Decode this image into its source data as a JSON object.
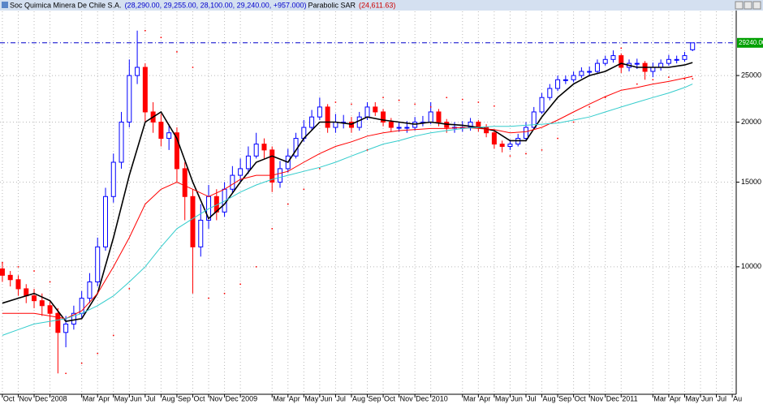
{
  "chart_data": {
    "type": "candlestick",
    "title": "Soc Quimica Minera De Chile S.A.",
    "quote": "(28,290.00, 29,255.00, 28,100.00, 29,240.00, +957.000)",
    "sar_label": "(24,611.63)",
    "log_scale": true,
    "grid": true,
    "up_color": "#0000ff",
    "down_color": "#ff0000",
    "ylim": [
      5450,
      34000
    ],
    "yticks": [
      25000,
      20000,
      15000,
      10000
    ],
    "xlim": [
      -0.15,
      46.2
    ],
    "xticks": [
      {
        "value": 0,
        "label": "Oct"
      },
      {
        "value": 1,
        "label": "Nov"
      },
      {
        "value": 2,
        "label": "Dec"
      },
      {
        "value": 3,
        "label": "2008"
      },
      {
        "value": 5,
        "label": "Mar"
      },
      {
        "value": 6,
        "label": "Apr"
      },
      {
        "value": 7,
        "label": "May"
      },
      {
        "value": 8,
        "label": "Jun"
      },
      {
        "value": 9,
        "label": "Jul"
      },
      {
        "value": 10,
        "label": "Aug"
      },
      {
        "value": 11,
        "label": "Sep"
      },
      {
        "value": 12,
        "label": "Oct"
      },
      {
        "value": 13,
        "label": "Nov"
      },
      {
        "value": 14,
        "label": "Dec"
      },
      {
        "value": 15,
        "label": "2009"
      },
      {
        "value": 17,
        "label": "Mar"
      },
      {
        "value": 18,
        "label": "Apr"
      },
      {
        "value": 19,
        "label": "May"
      },
      {
        "value": 20,
        "label": "Jun"
      },
      {
        "value": 21,
        "label": "Jul"
      },
      {
        "value": 22,
        "label": "Aug"
      },
      {
        "value": 23,
        "label": "Sep"
      },
      {
        "value": 24,
        "label": "Oct"
      },
      {
        "value": 25,
        "label": "Nov"
      },
      {
        "value": 26,
        "label": "Dec"
      },
      {
        "value": 27,
        "label": "2010"
      },
      {
        "value": 29,
        "label": "Mar"
      },
      {
        "value": 30,
        "label": "Apr"
      },
      {
        "value": 31,
        "label": "May"
      },
      {
        "value": 32,
        "label": "Jun"
      },
      {
        "value": 33,
        "label": "Jul"
      },
      {
        "value": 34,
        "label": "Aug"
      },
      {
        "value": 35,
        "label": "Sep"
      },
      {
        "value": 36,
        "label": "Oct"
      },
      {
        "value": 37,
        "label": "Nov"
      },
      {
        "value": 38,
        "label": "Dec"
      },
      {
        "value": 39,
        "label": "2011"
      },
      {
        "value": 41,
        "label": "Mar"
      },
      {
        "value": 42,
        "label": "Apr"
      },
      {
        "value": 43,
        "label": "May"
      },
      {
        "value": 44,
        "label": "Jun"
      },
      {
        "value": 45,
        "label": "Jul"
      },
      {
        "value": 46,
        "label": "Au"
      }
    ],
    "last_price": {
      "value": 29240,
      "label": "29240.00",
      "color": "#00a000"
    },
    "x": [
      0,
      0.5,
      1,
      1.5,
      2,
      2.5,
      3,
      3.5,
      4,
      4.5,
      5,
      5.5,
      6,
      6.5,
      7,
      7.5,
      8,
      8.5,
      9,
      9.5,
      10,
      10.5,
      11,
      11.5,
      12,
      12.5,
      13,
      13.5,
      14,
      14.5,
      15,
      15.5,
      16,
      16.5,
      17,
      17.5,
      18,
      18.5,
      19,
      19.5,
      20,
      20.5,
      21,
      21.5,
      22,
      22.5,
      23,
      23.5,
      24,
      24.5,
      25,
      25.5,
      26,
      26.5,
      27,
      27.5,
      28,
      28.5,
      29,
      29.5,
      30,
      30.5,
      31,
      31.5,
      32,
      32.5,
      33,
      33.5,
      34,
      34.5,
      35,
      35.5,
      36,
      36.5,
      37,
      37.5,
      38,
      38.5,
      39,
      39.5,
      40,
      40.5,
      41,
      41.5,
      42,
      42.5,
      43,
      43.5
    ],
    "open": [
      9900,
      9600,
      9400,
      9000,
      8700,
      8500,
      8300,
      8000,
      7300,
      7600,
      8000,
      8600,
      9300,
      11000,
      14000,
      16500,
      20000,
      25000,
      26000,
      21000,
      20000,
      18500,
      19000,
      16000,
      14000,
      11000,
      12500,
      14000,
      13000,
      14500,
      15500,
      16000,
      17000,
      18000,
      17500,
      15000,
      16000,
      17000,
      18500,
      19500,
      20500,
      21500,
      19500,
      20000,
      20000,
      19500,
      20500,
      21500,
      21000,
      20000,
      19500,
      19500,
      19500,
      20000,
      20000,
      21000,
      20000,
      19500,
      19500,
      19500,
      20000,
      19500,
      19000,
      18000,
      17800,
      18000,
      18500,
      19500,
      21000,
      22500,
      23500,
      24500,
      24500,
      25000,
      25500,
      25500,
      26500,
      27000,
      27500,
      26000,
      26500,
      26500,
      25500,
      26000,
      26500,
      27000,
      27000,
      28290
    ],
    "high": [
      10200,
      9800,
      9600,
      9200,
      9000,
      8800,
      8500,
      8200,
      7900,
      8300,
      8900,
      9700,
      11500,
      14600,
      17200,
      21000,
      27000,
      31000,
      26500,
      22000,
      20800,
      19800,
      19500,
      16500,
      14500,
      13500,
      14800,
      14500,
      15000,
      16200,
      16800,
      17800,
      19000,
      18500,
      17800,
      16600,
      17600,
      19000,
      20200,
      21200,
      22500,
      21800,
      20800,
      20700,
      20500,
      21000,
      22000,
      22000,
      21300,
      20400,
      20000,
      20100,
      20500,
      20600,
      22000,
      21300,
      20300,
      20000,
      20100,
      20400,
      20200,
      19800,
      19200,
      18300,
      18400,
      18900,
      20000,
      21500,
      23000,
      24000,
      25000,
      25000,
      25500,
      26000,
      26100,
      27000,
      27500,
      28200,
      27800,
      27000,
      27100,
      26800,
      26600,
      27000,
      27600,
      27500,
      28000,
      29255
    ],
    "low": [
      9300,
      9100,
      8700,
      8400,
      8200,
      7900,
      7500,
      6000,
      6800,
      7400,
      7800,
      8400,
      9100,
      10800,
      13600,
      16000,
      19500,
      24000,
      20000,
      19000,
      17800,
      17500,
      15000,
      12500,
      8800,
      10500,
      12000,
      12500,
      12700,
      14200,
      15000,
      15600,
      16800,
      16800,
      14300,
      14600,
      15700,
      16800,
      18200,
      19200,
      20200,
      19000,
      19000,
      19400,
      19000,
      19200,
      20200,
      20600,
      19600,
      19100,
      19100,
      19000,
      19200,
      19600,
      19800,
      19600,
      19000,
      19000,
      19100,
      19200,
      19100,
      18600,
      17600,
      17300,
      17500,
      17800,
      18300,
      19300,
      20800,
      22200,
      23200,
      24000,
      24200,
      24700,
      25000,
      25200,
      26200,
      26600,
      25300,
      25500,
      25800,
      24500,
      24800,
      25600,
      26200,
      26500,
      26700,
      28100
    ],
    "close": [
      9600,
      9400,
      9000,
      8700,
      8500,
      8300,
      8000,
      7300,
      7600,
      8000,
      8600,
      9300,
      11000,
      14000,
      16500,
      20000,
      25000,
      26000,
      21000,
      20000,
      18500,
      19000,
      16000,
      14000,
      11000,
      12500,
      14000,
      13000,
      14500,
      15500,
      16000,
      17000,
      18000,
      17500,
      15000,
      16000,
      17000,
      18500,
      19500,
      20500,
      21500,
      19500,
      20000,
      20000,
      19500,
      20500,
      21500,
      21000,
      20000,
      19500,
      19500,
      19500,
      20000,
      20000,
      21000,
      20000,
      19500,
      19500,
      19500,
      20000,
      19500,
      19000,
      18000,
      17800,
      18000,
      18500,
      19500,
      21000,
      22500,
      23500,
      24500,
      24500,
      25000,
      25500,
      25500,
      26500,
      27000,
      27500,
      26000,
      26500,
      26500,
      25500,
      26000,
      26500,
      27000,
      27000,
      27500,
      29240
    ],
    "overlay_x": [
      0,
      1,
      2,
      3,
      4,
      5,
      6,
      7,
      8,
      9,
      10,
      11,
      12,
      13,
      14,
      15,
      16,
      17,
      18,
      19,
      20,
      21,
      22,
      23,
      24,
      25,
      26,
      27,
      28,
      29,
      30,
      31,
      32,
      33,
      34,
      35,
      36,
      37,
      38,
      39,
      40,
      41,
      42,
      43,
      43.5
    ],
    "overlays": [
      {
        "color": "#000000",
        "style": "line",
        "values": [
          8400,
          8600,
          8800,
          8500,
          7700,
          7800,
          8800,
          11500,
          15500,
          20000,
          21000,
          18500,
          15000,
          12600,
          13500,
          15000,
          16500,
          17000,
          16500,
          18500,
          20000,
          20000,
          19800,
          20500,
          20200,
          20000,
          19800,
          20000,
          19800,
          19700,
          19500,
          19200,
          18300,
          18300,
          20500,
          22500,
          24000,
          25000,
          25500,
          26500,
          26000,
          26000,
          26000,
          26300,
          26600
        ]
      },
      {
        "color": "#ff0000",
        "style": "line",
        "values": [
          8000,
          8000,
          8000,
          7900,
          7800,
          8100,
          8800,
          10000,
          11500,
          13500,
          14500,
          15000,
          14500,
          14000,
          14500,
          15200,
          15500,
          15500,
          15800,
          16500,
          17200,
          17800,
          18200,
          18700,
          19000,
          19200,
          19300,
          19400,
          19400,
          19500,
          19400,
          19300,
          19000,
          19100,
          19500,
          20200,
          21000,
          21800,
          22600,
          23300,
          23600,
          24000,
          24300,
          24700,
          24900
        ]
      },
      {
        "color": "#33cccc",
        "style": "line",
        "values": [
          7200,
          7400,
          7600,
          7700,
          7800,
          8000,
          8300,
          8700,
          9300,
          10000,
          11000,
          12000,
          12600,
          13200,
          13700,
          14300,
          14800,
          15200,
          15500,
          15800,
          16100,
          16500,
          17000,
          17500,
          18000,
          18300,
          18700,
          19000,
          19200,
          19400,
          19500,
          19600,
          19600,
          19700,
          19800,
          19900,
          20200,
          20500,
          21000,
          21500,
          22000,
          22500,
          23000,
          23600,
          24000
        ]
      },
      {
        "name": "Parabolic SAR",
        "color": "#ff0000",
        "style": "dots",
        "values": [
          10200,
          10000,
          9800,
          9300,
          6000,
          6300,
          6600,
          7200,
          9000,
          31000,
          30000,
          28000,
          26000,
          8600,
          8800,
          9200,
          10000,
          12000,
          13500,
          14500,
          16000,
          22000,
          21800,
          17500,
          22500,
          22200,
          21800,
          21500,
          22500,
          22300,
          22000,
          21600,
          17000,
          17200,
          17500,
          18500,
          20000,
          21500,
          22500,
          28500,
          24000,
          24500,
          24800,
          24600,
          24611.63
        ]
      }
    ]
  }
}
